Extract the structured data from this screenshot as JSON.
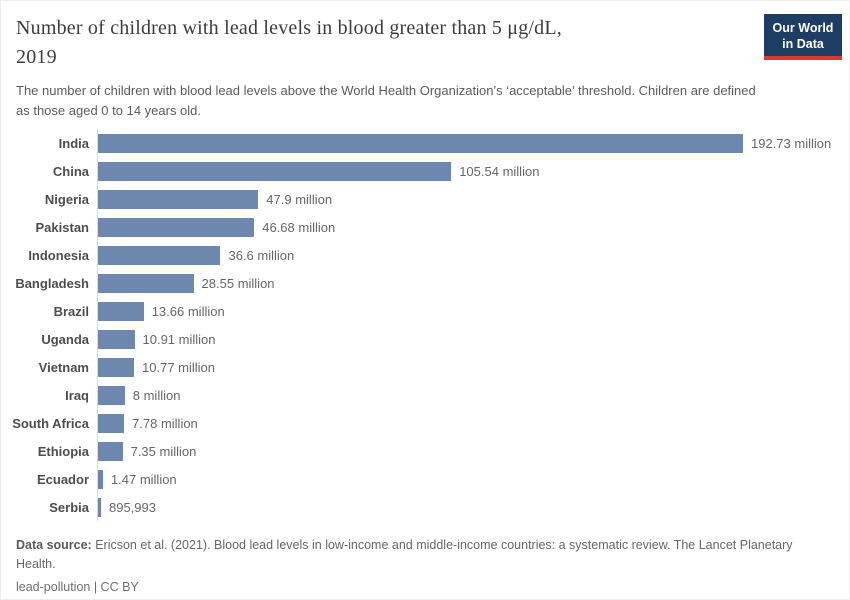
{
  "header": {
    "title_line1": "Number of children with lead levels in blood greater than 5 μg/dL,",
    "title_line2": "2019",
    "subtitle": "The number of children with blood lead levels above the World Health Organization’s ‘acceptable’ threshold. Children are defined as those aged 0 to 14 years old.",
    "logo": {
      "line1": "Our World",
      "line2": "in Data",
      "bg_color": "#1d3d63",
      "accent_color": "#dc3a2f"
    }
  },
  "chart_data": {
    "type": "bar",
    "orientation": "horizontal",
    "title": "Number of children with lead levels in blood greater than 5 μg/dL, 2019",
    "categories": [
      "India",
      "China",
      "Nigeria",
      "Pakistan",
      "Indonesia",
      "Bangladesh",
      "Brazil",
      "Uganda",
      "Vietnam",
      "Iraq",
      "South Africa",
      "Ethiopia",
      "Ecuador",
      "Serbia"
    ],
    "values": [
      192730000,
      105540000,
      47900000,
      46680000,
      36600000,
      28550000,
      13660000,
      10910000,
      10770000,
      8000000,
      7780000,
      7350000,
      1470000,
      895993
    ],
    "value_labels": [
      "192.73 million",
      "105.54 million",
      "47.9 million",
      "46.68 million",
      "36.6 million",
      "28.55 million",
      "13.66 million",
      "10.91 million",
      "10.77 million",
      "8 million",
      "7.78 million",
      "7.35 million",
      "1.47 million",
      "895,993"
    ],
    "xlim": [
      0,
      192730000
    ],
    "xlabel": "",
    "ylabel": "",
    "grid": false,
    "legend": false,
    "bar_color": "#6e87ae",
    "axis_line_color": "#d9d9d9"
  },
  "footer": {
    "source_label": "Data source:",
    "source_text": " Ericson et al. (2021). Blood lead levels in low-income and middle-income countries: a systematic review. The Lancet Planetary Health.",
    "note": "lead-pollution | CC BY"
  }
}
